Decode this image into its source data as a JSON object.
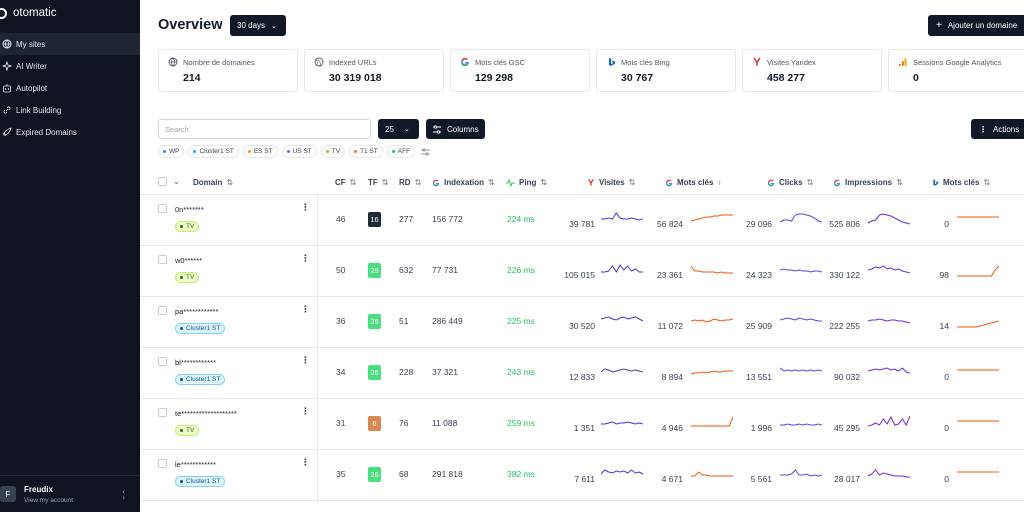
{
  "brand": {
    "name": "otomatic"
  },
  "sidebar": {
    "items": [
      {
        "label": "My sites",
        "icon": "globe-icon",
        "active": true
      },
      {
        "label": "AI Writer",
        "icon": "sparkle-icon",
        "active": false
      },
      {
        "label": "Autopilot",
        "icon": "robot-icon",
        "active": false
      },
      {
        "label": "Link Building",
        "icon": "link-icon",
        "active": false
      },
      {
        "label": "Expired Domains",
        "icon": "rocket-icon",
        "active": false
      }
    ],
    "user": {
      "initial": "F",
      "name": "Freudix",
      "subtitle": "View my account"
    }
  },
  "header": {
    "title": "Overview",
    "range": "30 days",
    "add_label": "Ajouter un domaine"
  },
  "stats": [
    {
      "label": "Nombre de domaines",
      "value": "214",
      "icon": "globe-icon"
    },
    {
      "label": "Indexed URLs",
      "value": "30 319 018",
      "icon": "world-icon"
    },
    {
      "label": "Mots clés GSC",
      "value": "129 298",
      "icon": "google-icon"
    },
    {
      "label": "Mots clés Bing",
      "value": "30 767",
      "icon": "bing-icon"
    },
    {
      "label": "Visites Yandex",
      "value": "458 277",
      "icon": "yandex-icon"
    },
    {
      "label": "Sessions Google Analytics",
      "value": "0",
      "icon": "analytics-icon"
    }
  ],
  "toolbar": {
    "search_placeholder": "Search",
    "per_page": "25",
    "columns_label": "Columns",
    "actions_label": "Actions"
  },
  "filters": [
    {
      "label": "WP",
      "color": "#3b82f6"
    },
    {
      "label": "Cluster1 ST",
      "color": "#06b6d4"
    },
    {
      "label": "ES ST",
      "color": "#f59e0b"
    },
    {
      "label": "US ST",
      "color": "#8b5cf6"
    },
    {
      "label": "TV",
      "color": "#84cc16"
    },
    {
      "label": "T1 ST",
      "color": "#f97316"
    },
    {
      "label": "AFF",
      "color": "#22c55e"
    }
  ],
  "table": {
    "headers": {
      "domain": "Domain",
      "cf": "CF",
      "tf": "TF",
      "rd": "RD",
      "indexation": "Indexation",
      "ping": "Ping",
      "visites": "Visites",
      "mots_cles": "Mots clés",
      "clicks": "Clicks",
      "impressions": "Impressions",
      "mots_cles_bing": "Mots clés"
    },
    "rows": [
      {
        "domain": "0n*******",
        "tag": "TV",
        "tag_type": "tv",
        "cf": "46",
        "tf": "16",
        "tf_color": "#1f2937",
        "rd": "277",
        "indexation": "156 772",
        "ping": "224 ms",
        "visites": "39 781",
        "mots_cles": "56 824",
        "clicks": "29 096",
        "impressions": "525 806",
        "bing": "0",
        "spark_visits": [
          8,
          8,
          9,
          8,
          14,
          9,
          8,
          8,
          9,
          8,
          7,
          8
        ],
        "spark_kw": [
          6,
          7,
          8,
          9,
          10,
          10,
          11,
          11,
          12,
          12,
          12,
          12
        ],
        "spark_clicks": [
          5,
          7,
          7,
          6,
          12,
          13,
          13,
          12,
          11,
          9,
          6,
          5
        ],
        "spark_impr": [
          4,
          6,
          7,
          12,
          13,
          12,
          11,
          9,
          7,
          5,
          4,
          3
        ],
        "spark_bing": [
          10,
          10,
          10,
          10,
          10,
          10,
          10,
          10,
          10,
          10,
          10,
          10
        ]
      },
      {
        "domain": "w0******",
        "tag": "TV",
        "tag_type": "tv",
        "cf": "50",
        "tf": "29",
        "tf_color": "#4ade80",
        "rd": "632",
        "indexation": "77 731",
        "ping": "226 ms",
        "visites": "105 015",
        "mots_cles": "23 361",
        "clicks": "24 323",
        "impressions": "330 122",
        "bing": "98",
        "spark_visits": [
          6,
          6,
          7,
          12,
          6,
          13,
          8,
          12,
          7,
          9,
          6,
          6
        ],
        "spark_kw": [
          12,
          7,
          7,
          6,
          6,
          6,
          6,
          5,
          6,
          5,
          5,
          5
        ],
        "spark_clicks": [
          8,
          9,
          8,
          8,
          7,
          8,
          7,
          7,
          6,
          7,
          7,
          6
        ],
        "spark_impr": [
          8,
          9,
          11,
          10,
          12,
          9,
          10,
          8,
          9,
          7,
          6,
          5
        ],
        "spark_bing": [
          2,
          2,
          2,
          2,
          2,
          2,
          2,
          2,
          2,
          2,
          8,
          12
        ]
      },
      {
        "domain": "pa************",
        "tag": "Cluster1 ST",
        "tag_type": "cl",
        "cf": "36",
        "tf": "26",
        "tf_color": "#4ade80",
        "rd": "51",
        "indexation": "286 449",
        "ping": "225 ms",
        "visites": "30 520",
        "mots_cles": "11 072",
        "clicks": "25 909",
        "impressions": "222 255",
        "bing": "14",
        "spark_visits": [
          10,
          11,
          12,
          10,
          9,
          11,
          12,
          10,
          11,
          12,
          10,
          8
        ],
        "spark_kw": [
          8,
          9,
          8,
          9,
          7,
          8,
          10,
          9,
          8,
          9,
          9,
          10
        ],
        "spark_clicks": [
          9,
          10,
          11,
          10,
          9,
          11,
          10,
          9,
          10,
          9,
          8,
          8
        ],
        "spark_impr": [
          8,
          9,
          9,
          10,
          9,
          8,
          9,
          9,
          8,
          8,
          7,
          6
        ],
        "spark_bing": [
          2,
          2,
          2,
          2,
          2,
          2,
          3,
          4,
          5,
          6,
          7,
          8
        ]
      },
      {
        "domain": "bl************",
        "tag": "Cluster1 ST",
        "tag_type": "cl",
        "cf": "34",
        "tf": "26",
        "tf_color": "#4ade80",
        "rd": "228",
        "indexation": "37 321",
        "ping": "243 ms",
        "visites": "12 833",
        "mots_cles": "8 894",
        "clicks": "13 551",
        "impressions": "90 032",
        "bing": "0",
        "spark_visits": [
          8,
          11,
          10,
          8,
          9,
          10,
          11,
          10,
          9,
          10,
          9,
          8
        ],
        "spark_kw": [
          6,
          7,
          7,
          8,
          7,
          8,
          9,
          8,
          8,
          9,
          9,
          9
        ],
        "spark_clicks": [
          12,
          9,
          10,
          9,
          10,
          9,
          10,
          9,
          10,
          9,
          10,
          9
        ],
        "spark_impr": [
          9,
          10,
          11,
          10,
          11,
          12,
          10,
          11,
          9,
          12,
          8,
          7
        ],
        "spark_bing": [
          10,
          10,
          10,
          10,
          10,
          10,
          10,
          10,
          10,
          10,
          10,
          10
        ]
      },
      {
        "domain": "te*******************",
        "tag": "TV",
        "tag_type": "tv",
        "cf": "31",
        "tf": "6",
        "tf_color": "#d9874f",
        "rd": "76",
        "indexation": "11 088",
        "ping": "259 ms",
        "visites": "1 351",
        "mots_cles": "4 946",
        "clicks": "1 996",
        "impressions": "45 295",
        "bing": "0",
        "spark_visits": [
          7,
          7,
          8,
          9,
          7,
          8,
          8,
          9,
          8,
          7,
          8,
          7
        ],
        "spark_kw": [
          5,
          5,
          5,
          5,
          5,
          5,
          5,
          5,
          5,
          5,
          5,
          14
        ],
        "spark_clicks": [
          6,
          6,
          7,
          6,
          6,
          7,
          6,
          7,
          6,
          6,
          7,
          6
        ],
        "spark_impr": [
          5,
          6,
          8,
          6,
          12,
          7,
          14,
          6,
          7,
          12,
          6,
          15
        ],
        "spark_bing": [
          10,
          10,
          10,
          10,
          10,
          10,
          10,
          10,
          10,
          10,
          10,
          10
        ]
      },
      {
        "domain": "le************",
        "tag": "Cluster1 ST",
        "tag_type": "cl",
        "cf": "35",
        "tf": "26",
        "tf_color": "#4ade80",
        "rd": "68",
        "indexation": "291 818",
        "ping": "382 ms",
        "visites": "7 611",
        "mots_cles": "4 671",
        "clicks": "5 561",
        "impressions": "28 017",
        "bing": "0",
        "spark_visits": [
          8,
          12,
          10,
          9,
          11,
          10,
          11,
          9,
          12,
          9,
          10,
          8
        ],
        "spark_kw": [
          6,
          6,
          10,
          7,
          7,
          6,
          6,
          6,
          6,
          6,
          6,
          6
        ],
        "spark_clicks": [
          7,
          7,
          7,
          8,
          12,
          7,
          7,
          8,
          6,
          7,
          6,
          7
        ],
        "spark_impr": [
          6,
          8,
          12,
          7,
          9,
          8,
          7,
          6,
          6,
          6,
          5,
          5
        ],
        "spark_bing": [
          10,
          10,
          10,
          10,
          10,
          10,
          10,
          10,
          10,
          10,
          10,
          10
        ]
      }
    ]
  },
  "colors": {
    "visits": "#4338ca",
    "kw": "#ea580c",
    "clicks": "#4f46e5",
    "impr": "#6d28d9",
    "bing": "#ea580c"
  }
}
